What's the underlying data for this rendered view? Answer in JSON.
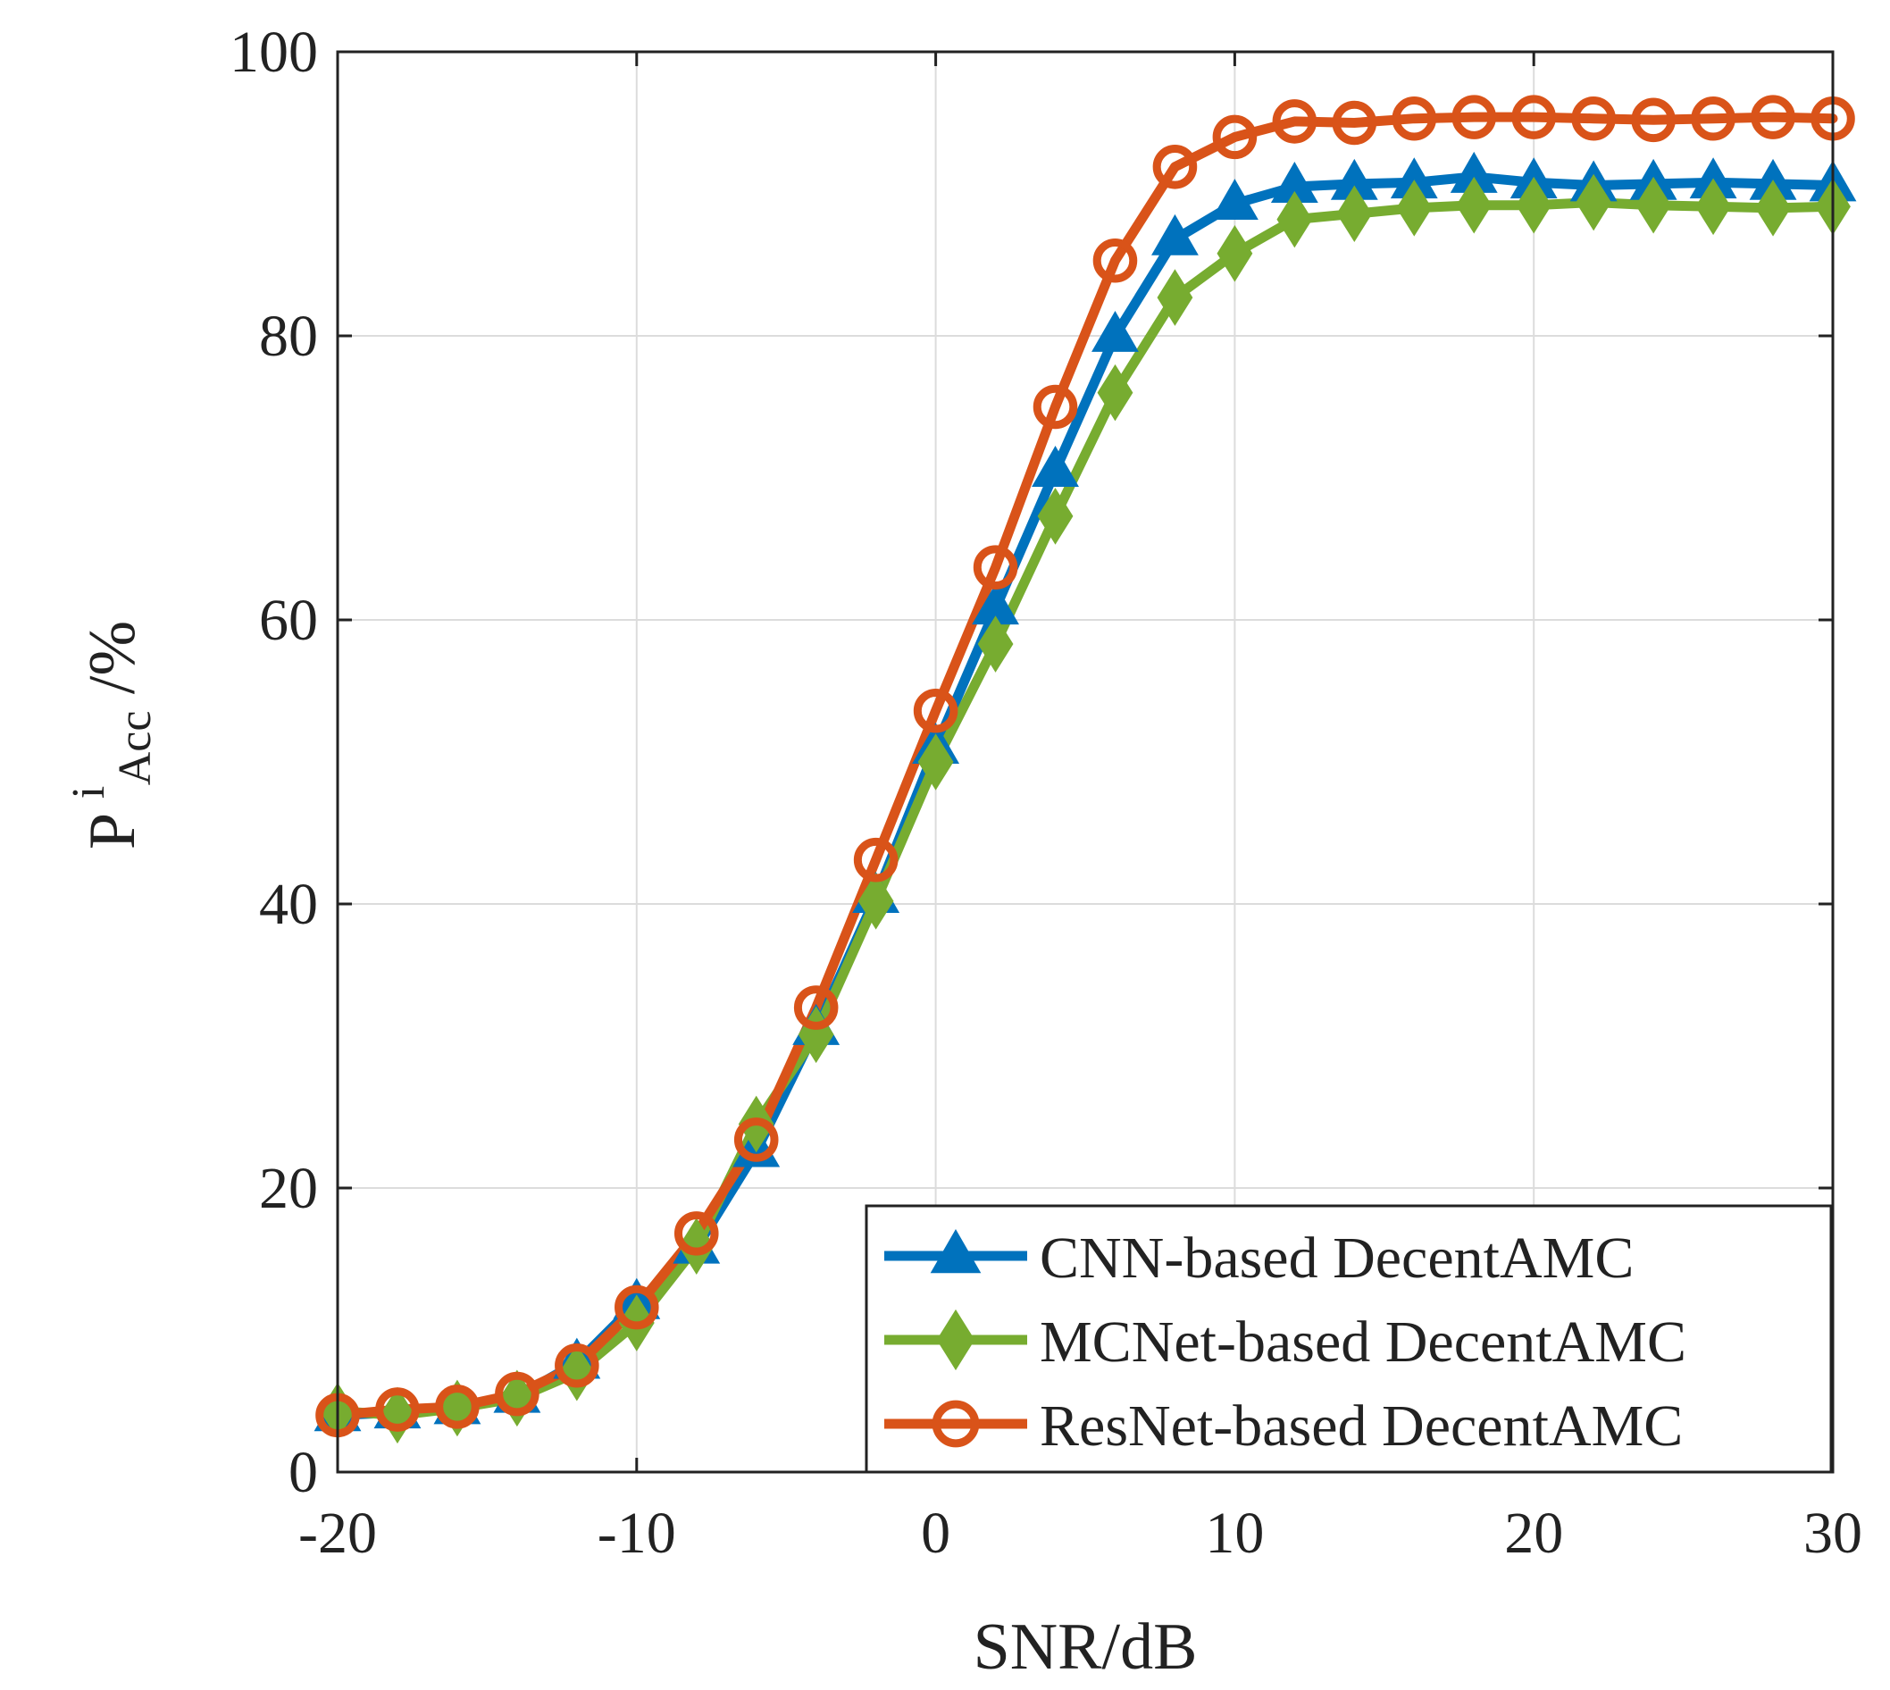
{
  "chart_data": {
    "type": "line",
    "xlabel": "SNR/dB",
    "ylabel": {
      "main": "P",
      "superscript": "i",
      "subscript": "Acc",
      "suffix": "/%"
    },
    "xlim": [
      -20,
      30
    ],
    "ylim": [
      0,
      100
    ],
    "xticks": [
      -20,
      -10,
      0,
      10,
      20,
      30
    ],
    "yticks": [
      0,
      20,
      40,
      60,
      80,
      100
    ],
    "grid": true,
    "legend_position": "bottom-right",
    "x": [
      -20,
      -18,
      -16,
      -14,
      -12,
      -10,
      -8,
      -6,
      -4,
      -2,
      0,
      2,
      4,
      6,
      8,
      10,
      12,
      14,
      16,
      18,
      20,
      22,
      24,
      26,
      28,
      30
    ],
    "series": [
      {
        "name": "CNN-based DecentAMC",
        "color": "#0072BD",
        "marker": "triangle",
        "values": [
          4.0,
          4.2,
          4.5,
          5.3,
          7.7,
          11.9,
          15.8,
          22.6,
          31.2,
          40.5,
          51.0,
          60.8,
          70.5,
          80.0,
          86.8,
          89.3,
          90.5,
          90.7,
          90.8,
          91.2,
          90.8,
          90.6,
          90.7,
          90.8,
          90.7,
          90.6
        ],
        "legend_marker_icon": "triangle-marker-icon"
      },
      {
        "name": "MCNet-based DecentAMC",
        "color": "#77AC30",
        "marker": "diamond",
        "values": [
          4.3,
          4.0,
          4.5,
          5.2,
          7.0,
          10.5,
          15.9,
          24.5,
          30.8,
          40.2,
          50.0,
          58.3,
          67.3,
          76.0,
          82.7,
          85.8,
          88.2,
          88.6,
          89.0,
          89.2,
          89.2,
          89.4,
          89.2,
          89.1,
          89.0,
          89.1
        ],
        "legend_marker_icon": "diamond-marker-icon"
      },
      {
        "name": "ResNet-based DecentAMC",
        "color": "#D95319",
        "marker": "circle",
        "values": [
          4.0,
          4.4,
          4.6,
          5.5,
          7.5,
          11.6,
          16.8,
          23.4,
          32.7,
          43.1,
          53.6,
          63.7,
          75.0,
          85.3,
          91.9,
          94.0,
          95.1,
          95.0,
          95.3,
          95.4,
          95.4,
          95.3,
          95.2,
          95.3,
          95.4,
          95.3
        ],
        "legend_marker_icon": "circle-marker-icon"
      }
    ]
  }
}
